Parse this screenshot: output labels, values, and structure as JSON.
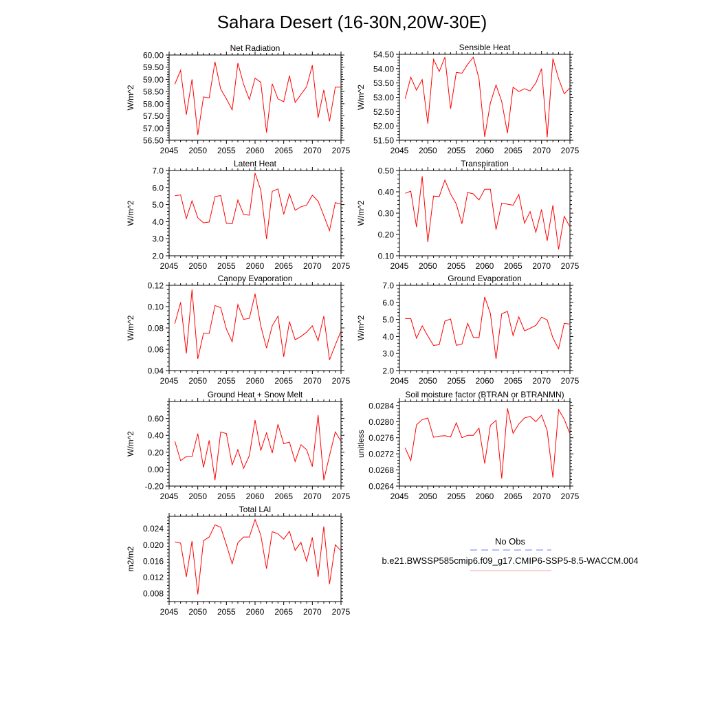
{
  "title": "Sahara Desert (16-30N,20W-30E)",
  "legend": {
    "obs_label": "No Obs",
    "case_label": "b.e21.BWSSP585cmip6.f09_g17.CMIP6-SSP5-8.5-WACCM.004",
    "obs_color": "#6b7bff",
    "case_color": "#f4a0a0"
  },
  "line_color": "#ff0000",
  "chart_data": [
    {
      "type": "line",
      "title": "Net Radiation",
      "ylabel": "W/m^2",
      "xlim": [
        2045,
        2075
      ],
      "xticks": [
        2045,
        2050,
        2055,
        2060,
        2065,
        2070,
        2075
      ],
      "ylim": [
        56.5,
        60.0
      ],
      "yticks": [
        "56.50",
        "57.00",
        "57.50",
        "58.00",
        "58.50",
        "59.00",
        "59.50",
        "60.00"
      ],
      "x_start": 2046,
      "y": [
        58.8,
        59.37,
        57.55,
        59.0,
        56.72,
        58.28,
        58.24,
        59.72,
        58.6,
        58.2,
        57.75,
        59.67,
        58.8,
        58.17,
        59.05,
        58.88,
        56.82,
        58.82,
        58.2,
        58.08,
        59.15,
        58.05,
        58.38,
        58.7,
        59.58,
        57.42,
        58.57,
        57.28,
        58.68,
        58.68
      ]
    },
    {
      "type": "line",
      "title": "Sensible Heat",
      "ylabel": "W/m^2",
      "xlim": [
        2045,
        2075
      ],
      "xticks": [
        2045,
        2050,
        2055,
        2060,
        2065,
        2070,
        2075
      ],
      "ylim": [
        51.5,
        54.5
      ],
      "yticks": [
        "51.50",
        "52.00",
        "52.50",
        "53.00",
        "53.50",
        "54.00",
        "54.50"
      ],
      "x_start": 2046,
      "y": [
        52.95,
        53.7,
        53.25,
        53.62,
        52.08,
        54.33,
        53.9,
        54.4,
        52.6,
        53.87,
        53.84,
        54.15,
        54.4,
        53.65,
        51.62,
        52.8,
        53.43,
        52.85,
        51.75,
        53.35,
        53.2,
        53.3,
        53.22,
        53.5,
        54.0,
        51.6,
        54.35,
        53.65,
        53.12,
        53.33
      ]
    },
    {
      "type": "line",
      "title": "Latent Heat",
      "ylabel": "W/m^2",
      "xlim": [
        2045,
        2075
      ],
      "xticks": [
        2045,
        2050,
        2055,
        2060,
        2065,
        2070,
        2075
      ],
      "ylim": [
        2.0,
        7.0
      ],
      "yticks": [
        "2.0",
        "3.0",
        "4.0",
        "5.0",
        "6.0",
        "7.0"
      ],
      "x_start": 2046,
      "y": [
        5.52,
        5.57,
        4.18,
        5.22,
        4.23,
        3.93,
        3.98,
        5.47,
        5.53,
        3.9,
        3.87,
        5.27,
        4.42,
        4.38,
        6.85,
        5.85,
        2.98,
        5.78,
        5.92,
        4.43,
        5.62,
        4.67,
        4.87,
        4.97,
        5.55,
        5.2,
        4.35,
        3.47,
        5.12,
        5.02
      ]
    },
    {
      "type": "line",
      "title": "Transpiration",
      "ylabel": "W/m^2",
      "xlim": [
        2045,
        2075
      ],
      "xticks": [
        2045,
        2050,
        2055,
        2060,
        2065,
        2070,
        2075
      ],
      "ylim": [
        0.1,
        0.5
      ],
      "yticks": [
        "0.10",
        "0.20",
        "0.30",
        "0.40",
        "0.50"
      ],
      "x_start": 2046,
      "y": [
        0.393,
        0.403,
        0.235,
        0.473,
        0.165,
        0.38,
        0.378,
        0.455,
        0.39,
        0.343,
        0.25,
        0.397,
        0.39,
        0.362,
        0.412,
        0.412,
        0.223,
        0.347,
        0.342,
        0.337,
        0.388,
        0.253,
        0.307,
        0.21,
        0.317,
        0.17,
        0.337,
        0.13,
        0.285,
        0.235
      ]
    },
    {
      "type": "line",
      "title": "Canopy Evaporation",
      "ylabel": "W/m^2",
      "xlim": [
        2045,
        2075
      ],
      "xticks": [
        2045,
        2050,
        2055,
        2060,
        2065,
        2070,
        2075
      ],
      "ylim": [
        0.04,
        0.12
      ],
      "yticks": [
        "0.04",
        "0.06",
        "0.08",
        "0.10",
        "0.12"
      ],
      "x_start": 2046,
      "y": [
        0.084,
        0.104,
        0.056,
        0.116,
        0.051,
        0.075,
        0.075,
        0.101,
        0.099,
        0.079,
        0.067,
        0.102,
        0.088,
        0.089,
        0.112,
        0.082,
        0.061,
        0.082,
        0.091,
        0.053,
        0.086,
        0.069,
        0.072,
        0.076,
        0.082,
        0.068,
        0.091,
        0.05,
        0.064,
        0.077
      ]
    },
    {
      "type": "line",
      "title": "Ground Evaporation",
      "ylabel": "W/m^2",
      "xlim": [
        2045,
        2075
      ],
      "xticks": [
        2045,
        2050,
        2055,
        2060,
        2065,
        2070,
        2075
      ],
      "ylim": [
        2.0,
        7.0
      ],
      "yticks": [
        "2.0",
        "3.0",
        "4.0",
        "5.0",
        "6.0",
        "7.0"
      ],
      "x_start": 2046,
      "y": [
        5.05,
        5.05,
        3.9,
        4.62,
        4.03,
        3.47,
        3.52,
        4.9,
        5.03,
        3.48,
        3.55,
        4.77,
        3.95,
        3.92,
        6.32,
        5.35,
        2.68,
        5.33,
        5.47,
        4.05,
        5.15,
        4.33,
        4.48,
        4.65,
        5.13,
        4.97,
        3.92,
        3.28,
        4.77,
        4.72
      ]
    },
    {
      "type": "line",
      "title": "Ground Heat + Snow Melt",
      "ylabel": "W/m^2",
      "xlim": [
        2045,
        2075
      ],
      "xticks": [
        2045,
        2050,
        2055,
        2060,
        2065,
        2070,
        2075
      ],
      "ylim": [
        -0.2,
        0.8
      ],
      "yticks": [
        "-0.20",
        "0.00",
        "0.20",
        "0.40",
        "0.60"
      ],
      "x_start": 2046,
      "y": [
        0.33,
        0.1,
        0.15,
        0.15,
        0.42,
        0.02,
        0.34,
        -0.13,
        0.44,
        0.42,
        0.05,
        0.23,
        0.01,
        0.16,
        0.58,
        0.22,
        0.43,
        0.19,
        0.53,
        0.3,
        0.32,
        0.09,
        0.29,
        0.23,
        0.03,
        0.64,
        -0.13,
        0.16,
        0.44,
        0.33
      ]
    },
    {
      "type": "line",
      "title": "Soil moisture factor (BTRAN or BTRANMN)",
      "ylabel": "unitless",
      "xlim": [
        2045,
        2075
      ],
      "xticks": [
        2045,
        2050,
        2055,
        2060,
        2065,
        2070,
        2075
      ],
      "ylim": [
        0.0264,
        0.0285
      ],
      "yticks": [
        "0.0264",
        "0.0268",
        "0.0272",
        "0.0276",
        "0.0280",
        "0.0284"
      ],
      "x_start": 2046,
      "y": [
        0.02735,
        0.02703,
        0.02792,
        0.02805,
        0.02809,
        0.02761,
        0.02764,
        0.02765,
        0.02762,
        0.02797,
        0.0276,
        0.02766,
        0.02766,
        0.02784,
        0.02696,
        0.02791,
        0.02803,
        0.02659,
        0.02833,
        0.02771,
        0.02794,
        0.02809,
        0.02813,
        0.028,
        0.02816,
        0.02778,
        0.02661,
        0.0283,
        0.02806,
        0.0277
      ]
    },
    {
      "type": "line",
      "title": "Total LAI",
      "ylabel": "m2/m2",
      "xlim": [
        2045,
        2075
      ],
      "xticks": [
        2045,
        2050,
        2055,
        2060,
        2065,
        2070,
        2075
      ],
      "ylim": [
        0.006,
        0.027
      ],
      "yticks": [
        "0.008",
        "0.012",
        "0.016",
        "0.020",
        "0.024"
      ],
      "x_start": 2046,
      "y": [
        0.0207,
        0.0204,
        0.0121,
        0.0209,
        0.0078,
        0.021,
        0.0219,
        0.0249,
        0.0243,
        0.02,
        0.0153,
        0.0205,
        0.0219,
        0.0219,
        0.0262,
        0.0224,
        0.0141,
        0.0232,
        0.0227,
        0.0214,
        0.0233,
        0.0186,
        0.0206,
        0.0159,
        0.0218,
        0.0121,
        0.0245,
        0.0103,
        0.02,
        0.0185
      ]
    }
  ]
}
